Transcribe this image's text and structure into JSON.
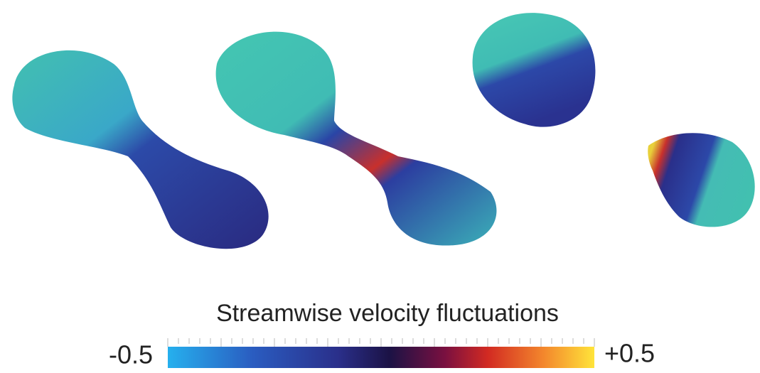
{
  "colorbar": {
    "title": "Streamwise velocity fluctuations",
    "min_label": "-0.5",
    "max_label": "+0.5"
  }
}
